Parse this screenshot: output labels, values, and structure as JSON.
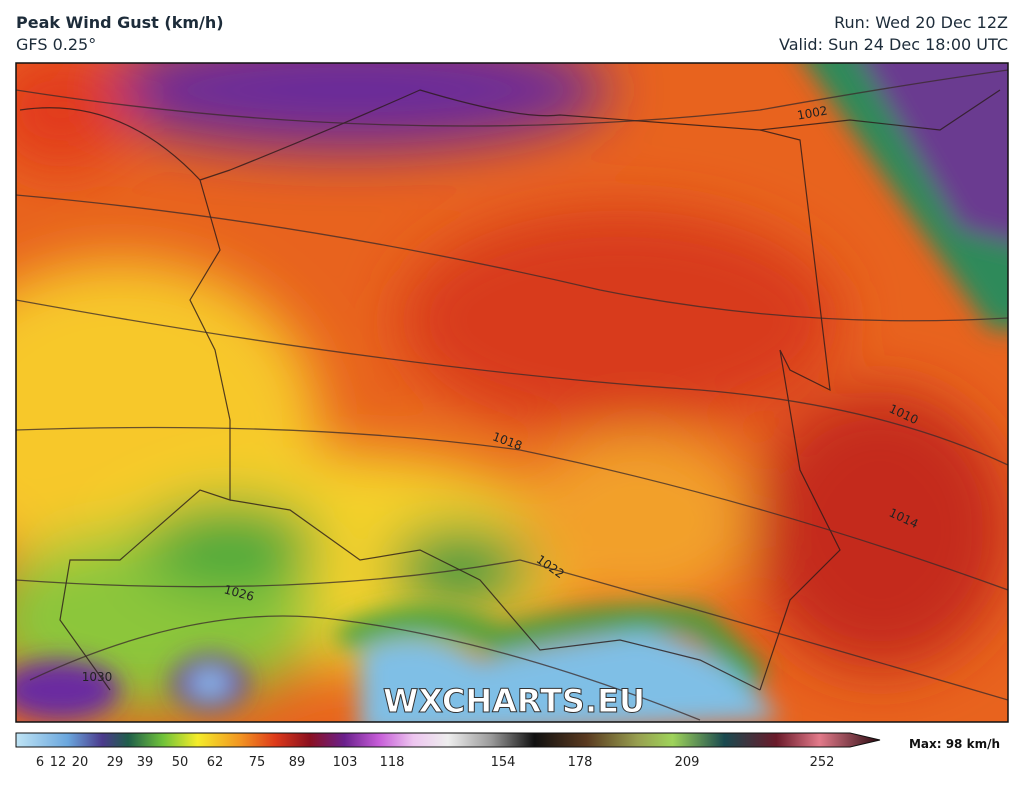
{
  "header": {
    "title": "Peak Wind Gust (km/h)",
    "subtitle": "GFS 0.25°",
    "run": "Run: Wed 20 Dec 12Z",
    "valid": "Valid: Sun 24 Dec 18:00 UTC"
  },
  "map": {
    "isobar_labels": [
      "1002",
      "1010",
      "1014",
      "1018",
      "1022",
      "1026",
      "1030"
    ],
    "watermark": "WXCHARTS.EU"
  },
  "colorbar": {
    "ticks": [
      6,
      12,
      20,
      29,
      39,
      50,
      62,
      75,
      89,
      103,
      118,
      154,
      178,
      209,
      252
    ],
    "max_label": "Max: 98 km/h"
  }
}
